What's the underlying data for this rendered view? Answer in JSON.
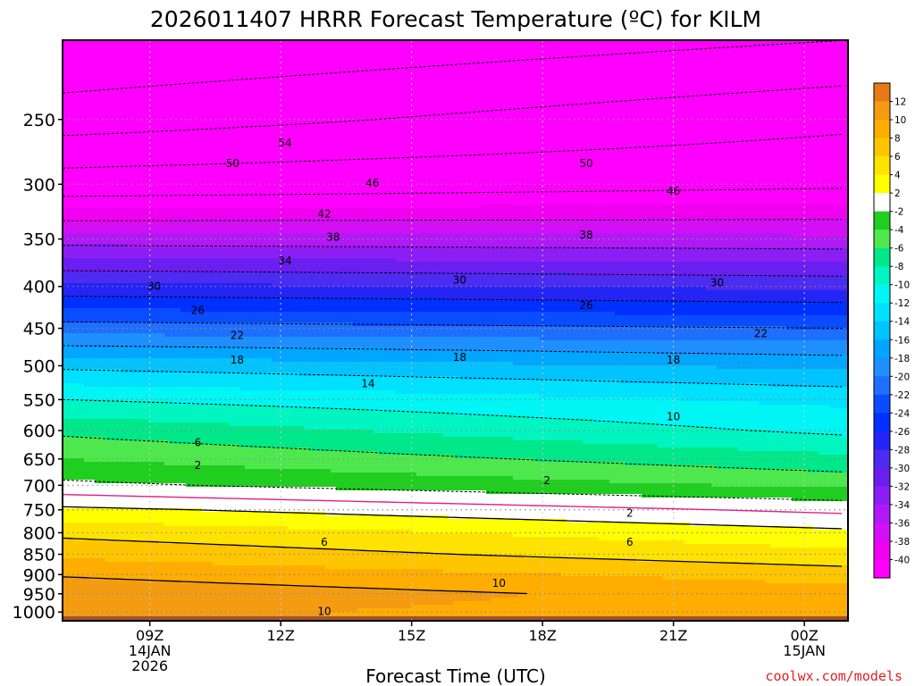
{
  "chart_data": {
    "type": "contour",
    "title": "2026011407 HRRR Forecast Temperature (ºC) for KILM",
    "xlabel": "Forecast Time (UTC)",
    "credit": "coolwx.com/models",
    "x_ticks": [
      {
        "hour": 9,
        "lines": [
          "09Z",
          "14JAN",
          "2026"
        ]
      },
      {
        "hour": 12,
        "lines": [
          "12Z"
        ]
      },
      {
        "hour": 15,
        "lines": [
          "15Z"
        ]
      },
      {
        "hour": 18,
        "lines": [
          "18Z"
        ]
      },
      {
        "hour": 21,
        "lines": [
          "21Z"
        ]
      },
      {
        "hour": 24,
        "lines": [
          "00Z",
          "15JAN"
        ]
      }
    ],
    "xlim": [
      7,
      25
    ],
    "y_ticks": [
      250,
      300,
      350,
      400,
      450,
      500,
      550,
      600,
      650,
      700,
      750,
      800,
      850,
      900,
      950,
      1000
    ],
    "ylim_hPa": [
      200,
      1025
    ],
    "colorbar": {
      "labels": [
        12,
        10,
        8,
        6,
        4,
        2,
        -2,
        -4,
        -6,
        -8,
        -10,
        -12,
        -14,
        -16,
        -18,
        -20,
        -22,
        -24,
        -26,
        -28,
        -30,
        -32,
        -34,
        -36,
        -38,
        -40
      ],
      "bins": [
        {
          "lo": 12,
          "color": "#e87818"
        },
        {
          "lo": 10,
          "color": "#f39c12"
        },
        {
          "lo": 8,
          "color": "#ffad00"
        },
        {
          "lo": 6,
          "color": "#ffc600"
        },
        {
          "lo": 4,
          "color": "#ffe300"
        },
        {
          "lo": 2,
          "color": "#ffff00"
        },
        {
          "lo": -2,
          "color": "#ffffff"
        },
        {
          "lo": -4,
          "color": "#1fce1f"
        },
        {
          "lo": -6,
          "color": "#4ee84e"
        },
        {
          "lo": -8,
          "color": "#00e88a"
        },
        {
          "lo": -10,
          "color": "#00f5c0"
        },
        {
          "lo": -12,
          "color": "#00f5f5"
        },
        {
          "lo": -14,
          "color": "#00e0ff"
        },
        {
          "lo": -16,
          "color": "#00c3ff"
        },
        {
          "lo": -18,
          "color": "#00a6ff"
        },
        {
          "lo": -20,
          "color": "#1e8fff"
        },
        {
          "lo": -22,
          "color": "#1f6fff"
        },
        {
          "lo": -24,
          "color": "#0a4cff"
        },
        {
          "lo": -26,
          "color": "#0030ff"
        },
        {
          "lo": -28,
          "color": "#2424f5"
        },
        {
          "lo": -30,
          "color": "#4b2cf0"
        },
        {
          "lo": -32,
          "color": "#6a1ef0"
        },
        {
          "lo": -34,
          "color": "#8c1ef5"
        },
        {
          "lo": -36,
          "color": "#b019f5"
        },
        {
          "lo": -38,
          "color": "#d40ff5"
        },
        {
          "lo": -40,
          "color": "#f000f0"
        },
        {
          "lo": -99,
          "color": "#ff00ff"
        }
      ]
    },
    "profile_start": [
      {
        "p": 1000,
        "t": 10.5
      },
      {
        "p": 950,
        "t": 11.5
      },
      {
        "p": 900,
        "t": 9.8
      },
      {
        "p": 850,
        "t": 7.5
      },
      {
        "p": 800,
        "t": 5.5
      },
      {
        "p": 750,
        "t": 2.5
      },
      {
        "p": 700,
        "t": -1.5
      },
      {
        "p": 650,
        "t": -4
      },
      {
        "p": 600,
        "t": -6.5
      },
      {
        "p": 550,
        "t": -10
      },
      {
        "p": 500,
        "t": -14.5
      },
      {
        "p": 450,
        "t": -21
      },
      {
        "p": 400,
        "t": -27.5
      },
      {
        "p": 350,
        "t": -35
      },
      {
        "p": 300,
        "t": -44
      },
      {
        "p": 250,
        "t": -52
      },
      {
        "p": 200,
        "t": -58
      }
    ],
    "profile_end": [
      {
        "p": 1000,
        "t": 9
      },
      {
        "p": 950,
        "t": 9
      },
      {
        "p": 900,
        "t": 7
      },
      {
        "p": 850,
        "t": 4.5
      },
      {
        "p": 800,
        "t": 2.5
      },
      {
        "p": 750,
        "t": -0.5
      },
      {
        "p": 700,
        "t": -4.5
      },
      {
        "p": 650,
        "t": -7.5
      },
      {
        "p": 600,
        "t": -10.5
      },
      {
        "p": 550,
        "t": -12.5
      },
      {
        "p": 500,
        "t": -16.5
      },
      {
        "p": 450,
        "t": -22
      },
      {
        "p": 400,
        "t": -28.5
      },
      {
        "p": 350,
        "t": -35.5
      },
      {
        "p": 300,
        "t": -42.5
      },
      {
        "p": 250,
        "t": -47
      },
      {
        "p": 200,
        "t": -54
      }
    ],
    "contour_labels": [
      {
        "text": "54",
        "hour": 12.1,
        "p": 267
      },
      {
        "text": "50",
        "hour": 10.9,
        "p": 283
      },
      {
        "text": "50",
        "hour": 19,
        "p": 283
      },
      {
        "text": "46",
        "hour": 14.1,
        "p": 299
      },
      {
        "text": "46",
        "hour": 21,
        "p": 306
      },
      {
        "text": "42",
        "hour": 13,
        "p": 326
      },
      {
        "text": "38",
        "hour": 13.2,
        "p": 348
      },
      {
        "text": "38",
        "hour": 19,
        "p": 346
      },
      {
        "text": "34",
        "hour": 12.1,
        "p": 372
      },
      {
        "text": "30",
        "hour": 9.1,
        "p": 400
      },
      {
        "text": "30",
        "hour": 16.1,
        "p": 393
      },
      {
        "text": "30",
        "hour": 22,
        "p": 396
      },
      {
        "text": "26",
        "hour": 10.1,
        "p": 428
      },
      {
        "text": "26",
        "hour": 19,
        "p": 422
      },
      {
        "text": "22",
        "hour": 11,
        "p": 459
      },
      {
        "text": "22",
        "hour": 23,
        "p": 457
      },
      {
        "text": "18",
        "hour": 11,
        "p": 492
      },
      {
        "text": "18",
        "hour": 16.1,
        "p": 488
      },
      {
        "text": "18",
        "hour": 21,
        "p": 492
      },
      {
        "text": "14",
        "hour": 14,
        "p": 526
      },
      {
        "text": "10",
        "hour": 21,
        "p": 577
      },
      {
        "text": "6",
        "hour": 10.1,
        "p": 621
      },
      {
        "text": "2",
        "hour": 10.1,
        "p": 662
      },
      {
        "text": "2",
        "hour": 18.1,
        "p": 691
      },
      {
        "text": "2",
        "hour": 20,
        "p": 757
      },
      {
        "text": "6",
        "hour": 13,
        "p": 822
      },
      {
        "text": "6",
        "hour": 20,
        "p": 822
      },
      {
        "text": "10",
        "hour": 17,
        "p": 922
      },
      {
        "text": "10",
        "hour": 13,
        "p": 998
      }
    ]
  }
}
